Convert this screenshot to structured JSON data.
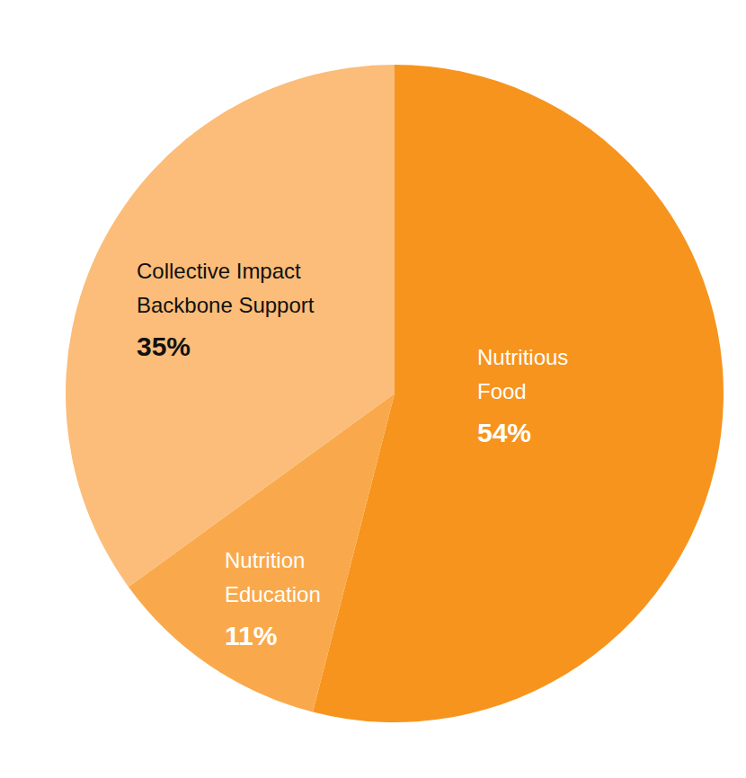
{
  "chart_data": {
    "type": "pie",
    "categories": [
      "Nutritious Food",
      "Nutrition Education",
      "Collective Impact Backbone Support"
    ],
    "values": [
      54,
      11,
      35
    ],
    "value_labels": [
      "54%",
      "11%",
      "35%"
    ],
    "colors": [
      "#f7941d",
      "#f9a94c",
      "#fbbd79"
    ],
    "data_labels": true
  }
}
